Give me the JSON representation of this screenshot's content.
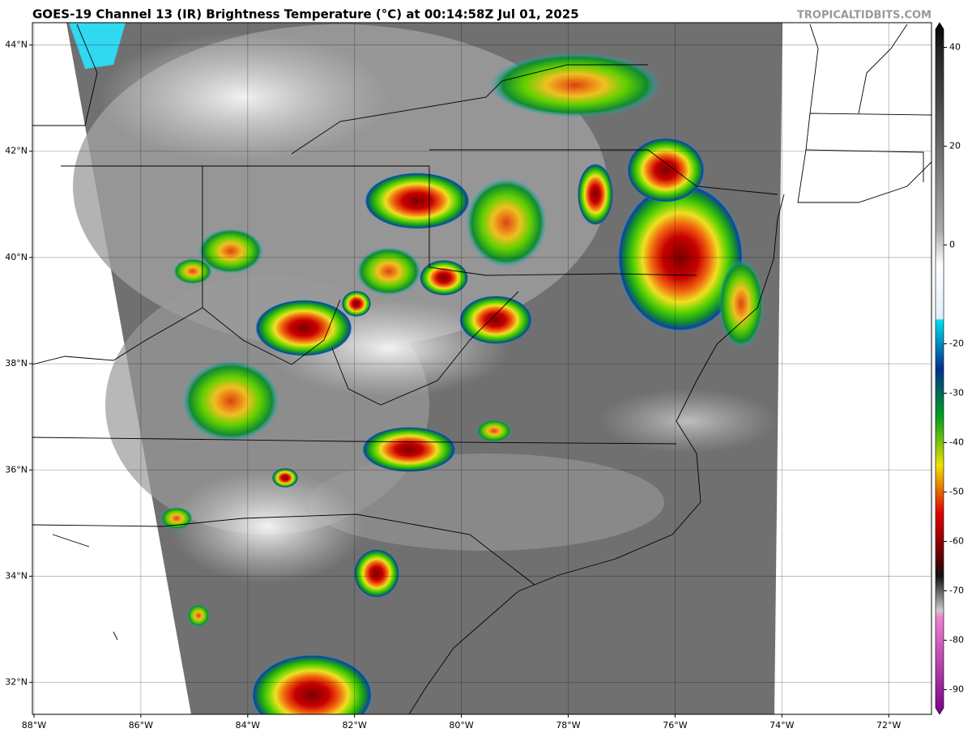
{
  "header": {
    "title": "GOES-19 Channel 13 (IR) Brightness Temperature (°C) at 00:14:58Z Jul 01, 2025",
    "site": "TROPICALTIDBITS.COM"
  },
  "map": {
    "lonlim": [
      -88.03,
      -71.2
    ],
    "latlim": [
      31.4,
      44.42
    ],
    "lonticks": [
      {
        "value": -88,
        "label": "88°W"
      },
      {
        "value": -86,
        "label": "86°W"
      },
      {
        "value": -84,
        "label": "84°W"
      },
      {
        "value": -82,
        "label": "82°W"
      },
      {
        "value": -80,
        "label": "80°W"
      },
      {
        "value": -78,
        "label": "78°W"
      },
      {
        "value": -76,
        "label": "76°W"
      },
      {
        "value": -74,
        "label": "74°W"
      },
      {
        "value": -72,
        "label": "72°W"
      }
    ],
    "latticks": [
      {
        "value": 44,
        "label": "44°N"
      },
      {
        "value": 42,
        "label": "42°N"
      },
      {
        "value": 40,
        "label": "40°N"
      },
      {
        "value": 38,
        "label": "38°N"
      },
      {
        "value": 36,
        "label": "36°N"
      },
      {
        "value": 34,
        "label": "34°N"
      },
      {
        "value": 32,
        "label": "32°N"
      }
    ]
  },
  "colorbar": {
    "lim": [
      -95,
      45
    ],
    "ticks": [
      40,
      20,
      0,
      -20,
      -30,
      -40,
      -50,
      -60,
      -70,
      -80,
      -90
    ]
  }
}
